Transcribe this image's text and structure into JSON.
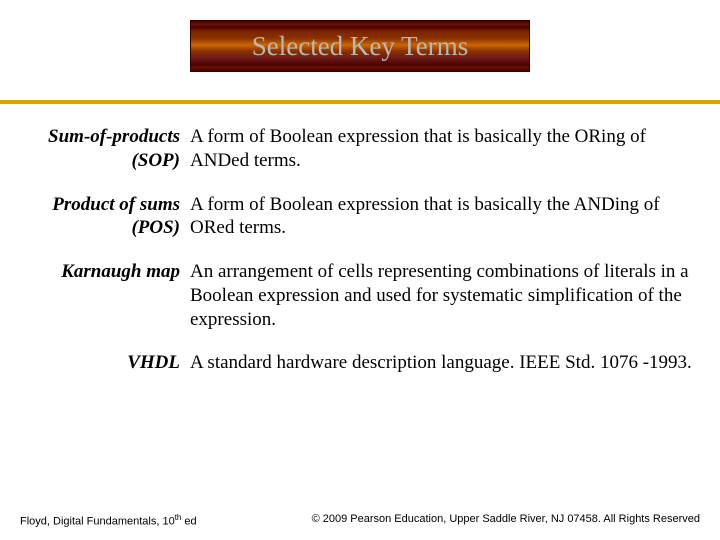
{
  "banner": {
    "title": "Selected Key Terms",
    "title_color": "#b8b8b8",
    "title_fontsize": 27
  },
  "gold_line_color": "#d9a300",
  "terms": [
    {
      "term": "Sum-of-products (SOP)",
      "definition": "A form of Boolean expression that is basically the ORing of ANDed terms."
    },
    {
      "term": "Product of sums (POS)",
      "definition": "A form of Boolean expression that is basically the ANDing of ORed terms."
    },
    {
      "term": "Karnaugh map",
      "definition": "An arrangement of cells representing combinations of literals in a Boolean expression and used for systematic simplification of the expression."
    },
    {
      "term": "VHDL",
      "definition": "A standard hardware description language. IEEE Std. 1076 -1993."
    }
  ],
  "footer": {
    "left_pre": "Floyd, Digital Fundamentals, 10",
    "left_sup": "th",
    "left_post": " ed",
    "right": "© 2009 Pearson Education, Upper Saddle River, NJ 07458. All Rights Reserved"
  }
}
